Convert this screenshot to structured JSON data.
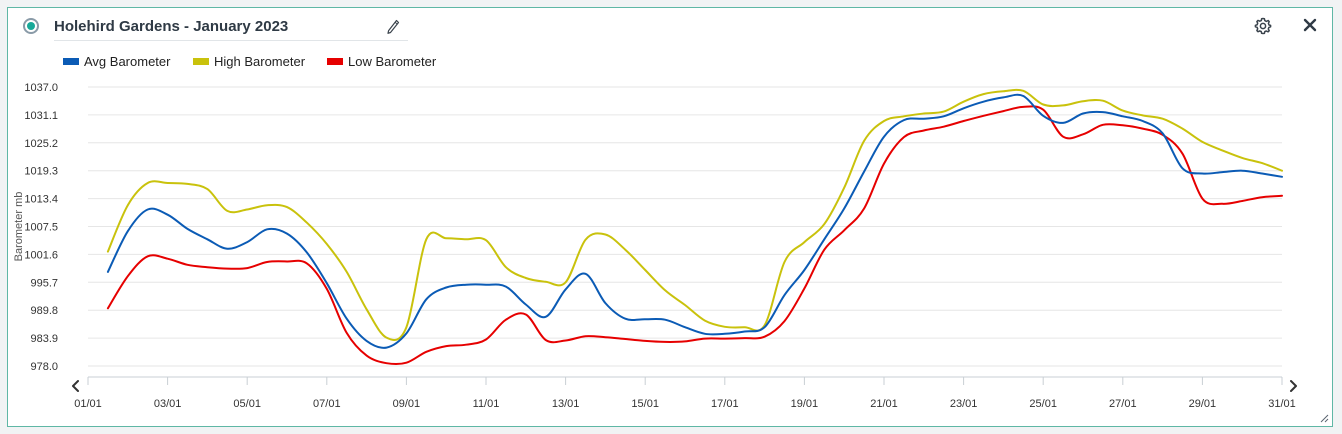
{
  "header": {
    "title": "Holehird Gardens - January 2023"
  },
  "icons": {
    "radio": "radio-selected-icon",
    "edit": "pencil-icon",
    "settings": "gear-icon",
    "close": "close-icon",
    "prev": "chevron-left-icon",
    "next": "chevron-right-icon",
    "resize": "resize-handle-icon"
  },
  "colors": {
    "accent": "#18a999",
    "avg": "#0b5bb5",
    "high": "#c9c20c",
    "low": "#e60000",
    "border": "#5fb7a5"
  },
  "chart_data": {
    "type": "line",
    "title": "",
    "xlabel": "",
    "ylabel": "Barometer mb",
    "ylim": [
      978.0,
      1037.0
    ],
    "y_ticks": [
      "1037.0",
      "1031.1",
      "1025.2",
      "1019.3",
      "1013.4",
      "1007.5",
      "1001.6",
      "995.7",
      "989.8",
      "983.9",
      "978.0"
    ],
    "x_ticks": [
      "01/01",
      "03/01",
      "05/01",
      "07/01",
      "09/01",
      "11/01",
      "13/01",
      "15/01",
      "17/01",
      "19/01",
      "21/01",
      "23/01",
      "25/01",
      "27/01",
      "29/01",
      "31/01"
    ],
    "x_tick_days": [
      1,
      3,
      5,
      7,
      9,
      11,
      13,
      15,
      17,
      19,
      21,
      23,
      25,
      27,
      29,
      31
    ],
    "xlim": [
      1,
      31
    ],
    "grid": true,
    "legend_position": "top-left",
    "x": [
      1.5,
      2,
      2.5,
      3,
      3.5,
      4,
      4.5,
      5,
      5.5,
      6,
      6.5,
      7,
      7.5,
      8,
      8.5,
      9,
      9.5,
      10,
      10.5,
      11,
      11.5,
      12,
      12.5,
      13,
      13.5,
      14,
      14.5,
      15,
      15.5,
      16,
      16.5,
      17,
      17.5,
      18,
      18.5,
      19,
      19.5,
      20,
      20.5,
      21,
      21.5,
      22,
      22.5,
      23,
      23.5,
      24,
      24.5,
      25,
      25.5,
      26,
      26.5,
      27,
      27.5,
      28,
      28.5,
      29,
      29.5,
      30,
      30.5,
      31
    ],
    "series": [
      {
        "name": "Avg Barometer",
        "color": "#0b5bb5",
        "values": [
          997.9,
          1006.5,
          1011.1,
          1010.0,
          1007.0,
          1004.8,
          1002.8,
          1004.2,
          1006.9,
          1006.0,
          1002.0,
          995.5,
          988.0,
          983.3,
          981.9,
          984.9,
          992.1,
          994.6,
          995.2,
          995.2,
          994.8,
          991.0,
          988.4,
          994.2,
          997.5,
          991.3,
          988.0,
          987.9,
          987.8,
          986.2,
          984.8,
          984.8,
          985.3,
          986.2,
          993.0,
          998.3,
          1004.8,
          1011.3,
          1019.1,
          1026.5,
          1030.0,
          1030.3,
          1030.8,
          1032.5,
          1033.9,
          1034.8,
          1035.1,
          1030.9,
          1029.4,
          1031.4,
          1031.7,
          1030.8,
          1029.8,
          1027.2,
          1019.8,
          1018.7,
          1019.0,
          1019.3,
          1018.7,
          1018.0
        ]
      },
      {
        "name": "High Barometer",
        "color": "#c9c20c",
        "values": [
          1002.2,
          1012.0,
          1016.7,
          1016.7,
          1016.5,
          1015.4,
          1010.8,
          1011.1,
          1012.0,
          1011.6,
          1008.3,
          1003.8,
          997.9,
          990.0,
          984.0,
          986.2,
          1004.8,
          1005.0,
          1004.8,
          1004.6,
          998.9,
          996.6,
          995.8,
          995.7,
          1004.7,
          1005.8,
          1002.6,
          998.3,
          994.0,
          990.9,
          987.6,
          986.3,
          986.2,
          986.6,
          1000.0,
          1004.2,
          1008.0,
          1015.7,
          1025.6,
          1029.8,
          1030.8,
          1031.4,
          1031.8,
          1033.9,
          1035.5,
          1036.1,
          1036.2,
          1033.3,
          1033.1,
          1034.0,
          1034.1,
          1032.0,
          1031.0,
          1030.3,
          1028.2,
          1025.4,
          1023.6,
          1022.0,
          1020.9,
          1019.3
        ]
      },
      {
        "name": "Low Barometer",
        "color": "#e60000",
        "values": [
          990.2,
          997.0,
          1001.2,
          1000.7,
          999.4,
          998.9,
          998.6,
          998.7,
          1000.0,
          1000.1,
          999.7,
          994.3,
          985.0,
          980.2,
          978.6,
          978.7,
          981.0,
          982.2,
          982.5,
          983.6,
          987.8,
          988.9,
          983.5,
          983.4,
          984.3,
          984.1,
          983.7,
          983.3,
          983.1,
          983.2,
          983.8,
          983.8,
          983.9,
          984.2,
          987.5,
          994.4,
          1002.6,
          1006.7,
          1011.3,
          1020.8,
          1026.4,
          1027.8,
          1028.6,
          1029.8,
          1030.9,
          1031.9,
          1032.8,
          1032.2,
          1026.5,
          1027.0,
          1029.0,
          1028.9,
          1028.2,
          1026.9,
          1022.9,
          1013.4,
          1012.3,
          1012.9,
          1013.7,
          1014.0
        ]
      }
    ]
  }
}
